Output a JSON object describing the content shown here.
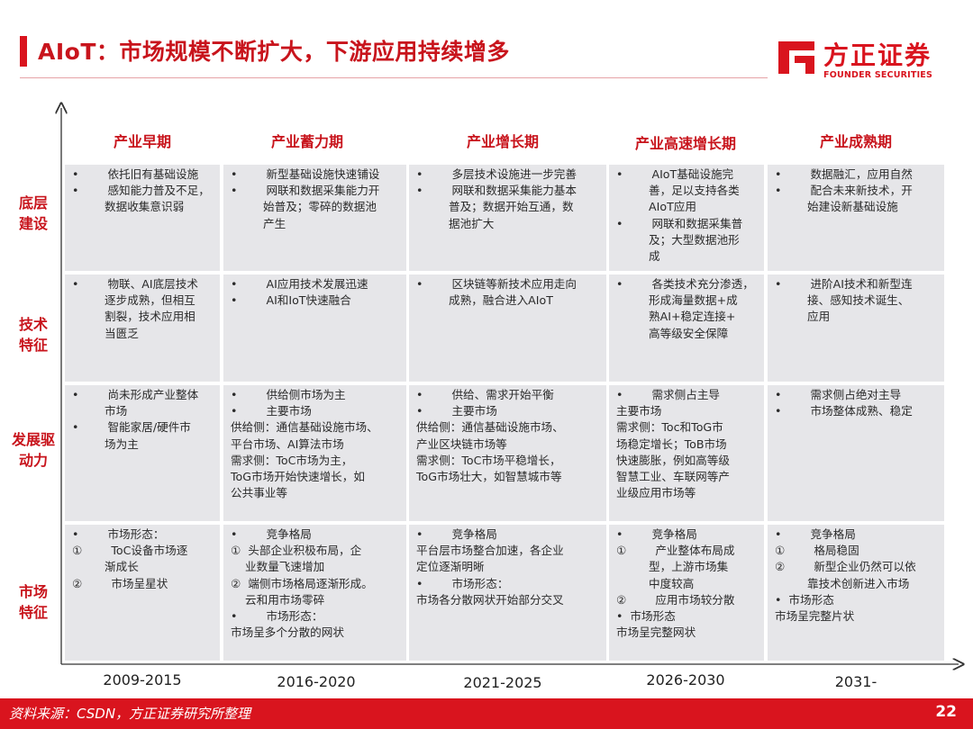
{
  "header": {
    "title": "AIoT：市场规模不断扩大，下游应用持续增多",
    "logo_cn": "方正证券",
    "logo_en": "FOUNDER SECURITIES",
    "brand_color": "#d9141e"
  },
  "phases": [
    "产业早期",
    "产业蓄力期",
    "产业增长期",
    "产业高速增长期",
    "产业成熟期"
  ],
  "rows": [
    "底层建设",
    "技术特征",
    "发展驱动力",
    "市场特征"
  ],
  "years": [
    "2009-2015",
    "2016-2020",
    "2021-2025",
    "2026-2030",
    "2031-"
  ],
  "cells": [
    [
      [
        "•        依托旧有基础设施",
        "•        感知能力普及不足，",
        "         数据收集意识弱"
      ],
      [
        "•        新型基础设施快速铺设",
        "•        网联和数据采集能力开",
        "         始普及；零碎的数据池",
        "         产生"
      ],
      [
        "•        多层技术设施进一步完善",
        "•        网联和数据采集能力基本",
        "         普及；数据开始互通，数",
        "         据池扩大"
      ],
      [
        "•        AIoT基础设施完",
        "         善，足以支持各类",
        "         AIoT应用",
        "•        网联和数据采集普",
        "         及；大型数据池形",
        "         成"
      ],
      [
        "•        数据融汇，应用自然",
        "•        配合未来新技术，开",
        "         始建设新基础设施"
      ]
    ],
    [
      [
        "•        物联、AI底层技术",
        "         逐步成熟，但相互",
        "         割裂，技术应用相",
        "         当匮乏"
      ],
      [
        "•        AI应用技术发展迅速",
        "•        AI和IoT快速融合"
      ],
      [
        "•        区块链等新技术应用走向",
        "         成熟，融合进入AIoT"
      ],
      [
        "•        各类技术充分渗透，",
        "         形成海量数据+成",
        "         熟AI+稳定连接+",
        "         高等级安全保障"
      ],
      [
        "•        进阶AI技术和新型连",
        "         接、感知技术诞生、",
        "         应用"
      ]
    ],
    [
      [
        "•        尚未形成产业整体",
        "         市场",
        "•        智能家居/硬件市",
        "         场为主"
      ],
      [
        "•        供给侧市场为主",
        "•        主要市场",
        "供给侧：通信基础设施市场、",
        "平台市场、AI算法市场",
        "需求侧：ToC市场为主，",
        "ToG市场开始快速增长，如",
        "公共事业等"
      ],
      [
        "•        供给、需求开始平衡",
        "•        主要市场",
        "供给侧：通信基础设施市场、",
        "产业区块链市场等",
        "需求侧：ToC市场平稳增长，",
        "ToG市场壮大，如智慧城市等"
      ],
      [
        "•        需求侧占主导",
        "主要市场",
        "需求侧：Toc和ToG市",
        "场稳定增长；ToB市场",
        "快速膨胀，例如高等级",
        "智慧工业、车联网等产",
        "业级应用市场等"
      ],
      [
        "•        需求侧占绝对主导",
        "•        市场整体成熟、稳定"
      ]
    ],
    [
      [
        "•        市场形态：",
        "①        ToC设备市场逐",
        "         渐成长",
        "②        市场呈星状"
      ],
      [
        "•        竞争格局",
        "①  头部企业积极布局，企",
        "    业数量飞速增加",
        "②  端侧市场格局逐渐形成。",
        "    云和用市场零碎",
        "•        市场形态：",
        "市场呈多个分散的网状"
      ],
      [
        "•        竞争格局",
        "平台层市场整合加速，各企业",
        "定位逐渐明晰",
        "•        市场形态：",
        "市场各分散网状开始部分交叉"
      ],
      [
        "•        竞争格局",
        "①        产业整体布局成",
        "         型，上游市场集",
        "         中度较高",
        "②        应用市场较分散",
        "•  市场形态",
        "市场呈完整网状"
      ],
      [
        "•        竞争格局",
        "①        格局稳固",
        "②        新型企业仍然可以依",
        "         靠技术创新进入市场",
        "•  市场形态",
        "市场呈完整片状"
      ]
    ]
  ],
  "footer": {
    "source": "资料来源：CSDN，方正证券研究所整理",
    "page": "22"
  }
}
